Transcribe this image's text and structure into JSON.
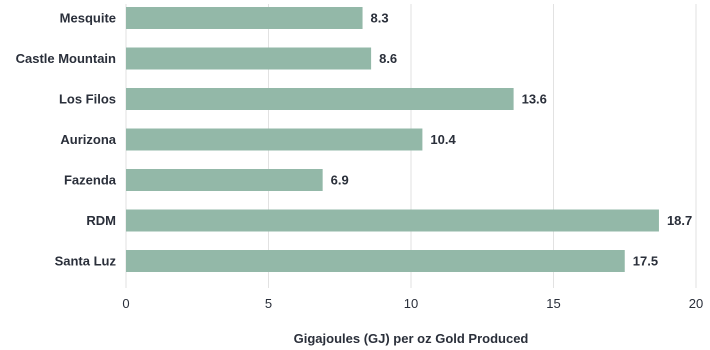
{
  "chart_data": {
    "type": "bar",
    "orientation": "horizontal",
    "categories": [
      "Mesquite",
      "Castle Mountain",
      "Los Filos",
      "Aurizona",
      "Fazenda",
      "RDM",
      "Santa Luz"
    ],
    "values": [
      8.3,
      8.6,
      13.6,
      10.4,
      6.9,
      18.7,
      17.5
    ],
    "value_labels": [
      "8.3",
      "8.6",
      "13.6",
      "10.4",
      "6.9",
      "18.7",
      "17.5"
    ],
    "title": "",
    "xlabel": "Gigajoules (GJ) per oz Gold Produced",
    "ylabel": "",
    "xlim": [
      0,
      20
    ],
    "xticks": [
      0,
      5,
      10,
      15,
      20
    ],
    "grid": "vertical",
    "legend": "none",
    "bar_color": "#93b8a8",
    "grid_color": "#e2e2e2",
    "text_color": "#2a2f3a"
  }
}
